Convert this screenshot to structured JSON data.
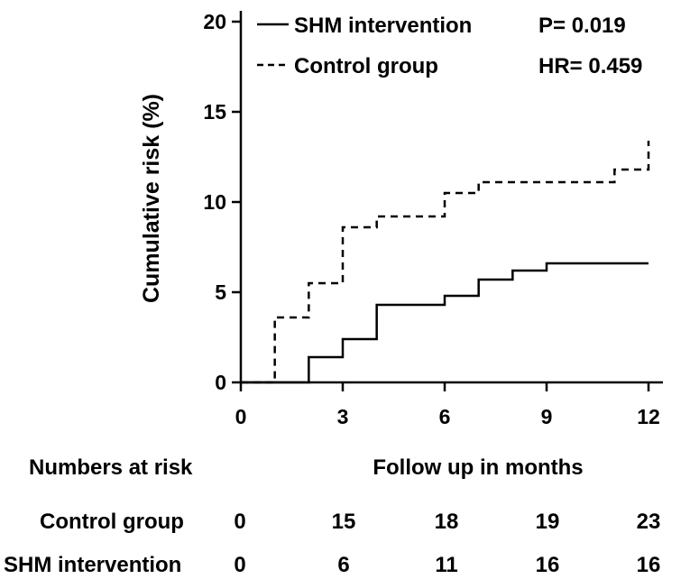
{
  "chart_data": {
    "type": "line",
    "title": "",
    "xlabel": "Follow up in months",
    "ylabel": "Cumulative risk (%)",
    "xlim": [
      0,
      12.5
    ],
    "ylim": [
      0,
      21
    ],
    "x_ticks": [
      "0",
      "3",
      "6",
      "9",
      "12"
    ],
    "y_ticks": [
      "0",
      "5",
      "10",
      "15",
      "20"
    ],
    "legend": [
      {
        "name": "SHM intervention",
        "style": "solid"
      },
      {
        "name": "Control group",
        "style": "dashed"
      }
    ],
    "annotations": {
      "p_value": "P= 0.019",
      "hr": "HR= 0.459"
    },
    "series": [
      {
        "name": "SHM intervention",
        "style": "solid",
        "steps": [
          [
            0,
            0
          ],
          [
            2,
            1.4
          ],
          [
            3,
            2.4
          ],
          [
            4,
            4.3
          ],
          [
            6,
            4.8
          ],
          [
            7,
            5.7
          ],
          [
            8,
            6.2
          ],
          [
            9,
            6.6
          ],
          [
            12,
            6.6
          ]
        ]
      },
      {
        "name": "Control group",
        "style": "dashed",
        "steps": [
          [
            0,
            0
          ],
          [
            1,
            3.6
          ],
          [
            2,
            5.5
          ],
          [
            3,
            8.6
          ],
          [
            4,
            9.2
          ],
          [
            6,
            10.5
          ],
          [
            7,
            11.1
          ],
          [
            11,
            11.8
          ],
          [
            12,
            13.4
          ]
        ]
      }
    ]
  },
  "risk_table": {
    "heading": "Numbers at risk",
    "rows": [
      {
        "label": "Control group",
        "values": [
          "0",
          "15",
          "18",
          "19",
          "23"
        ]
      },
      {
        "label": "SHM intervention",
        "values": [
          "0",
          "6",
          "11",
          "16",
          "16"
        ]
      }
    ]
  }
}
